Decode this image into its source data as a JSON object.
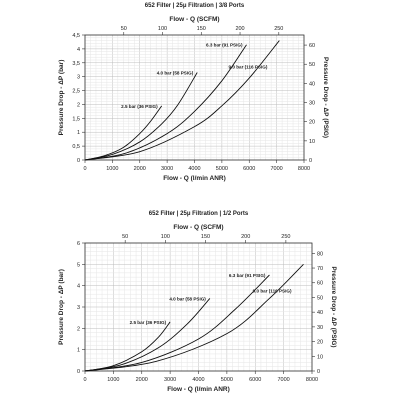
{
  "chart_data": [
    {
      "type": "line",
      "title": "652 Filter | 25μ Filtration | 3/8 Ports",
      "xlabel": "Flow - Q (l/min ANR)",
      "x2label": "Flow - Q (SCFM)",
      "ylabel": "Pressure Drop - ΔP (bar)",
      "y2label": "Pressure Drop - ΔP (PSIG)",
      "xlim": [
        0,
        8000
      ],
      "ylim": [
        0,
        4.5
      ],
      "x_ticks": [
        0,
        1000,
        2000,
        3000,
        4000,
        5000,
        6000,
        7000,
        8000
      ],
      "y_ticks": [
        0,
        0.5,
        1,
        1.5,
        2,
        2.5,
        3,
        3.5,
        4,
        4.5
      ],
      "y_tick_labels": [
        "0",
        "0,5",
        "1",
        "1,5",
        "2",
        "2,5",
        "3",
        "3,5",
        "4",
        "4,5"
      ],
      "x2_ticks": [
        50,
        100,
        150,
        200,
        250
      ],
      "y2_ticks": [
        0,
        10,
        20,
        30,
        40,
        50,
        60
      ],
      "grid": true,
      "series": [
        {
          "name": "2.5 bar (36 PSIG)",
          "x": [
            0,
            700,
            1400,
            2000,
            2400,
            2800
          ],
          "y": [
            0,
            0.15,
            0.45,
            0.95,
            1.4,
            1.95
          ]
        },
        {
          "name": "4.0 bar (58 PSIG)",
          "x": [
            0,
            1000,
            2000,
            2800,
            3400,
            4100
          ],
          "y": [
            0,
            0.2,
            0.65,
            1.3,
            2.0,
            3.15
          ]
        },
        {
          "name": "6.3 bar (91 PSIG)",
          "x": [
            0,
            1500,
            3000,
            4000,
            5000,
            5900
          ],
          "y": [
            0,
            0.25,
            0.95,
            1.75,
            2.85,
            4.15
          ]
        },
        {
          "name": "9.0 bar (116 PSIG)",
          "x": [
            0,
            2000,
            4000,
            5000,
            6000,
            7100
          ],
          "y": [
            0,
            0.3,
            1.2,
            1.95,
            2.95,
            4.3
          ]
        }
      ]
    },
    {
      "type": "line",
      "title": "652 Filter | 25μ Filtration | 1/2 Ports",
      "xlabel": "Flow - Q (l/min ANR)",
      "x2label": "Flow - Q (SCFM)",
      "ylabel": "Pressure Drop - ΔP (bar)",
      "y2label": "Pressure Drop - ΔP (PSIG)",
      "xlim": [
        0,
        8000
      ],
      "ylim": [
        0,
        6
      ],
      "x_ticks": [
        0,
        1000,
        2000,
        3000,
        4000,
        5000,
        6000,
        7000,
        8000
      ],
      "y_ticks": [
        0,
        1,
        2,
        3,
        4,
        5,
        6
      ],
      "y_tick_labels": [
        "0",
        "1",
        "2",
        "3",
        "4",
        "5",
        "6"
      ],
      "x2_ticks": [
        50,
        100,
        150,
        200,
        250
      ],
      "y2_ticks": [
        0,
        10,
        20,
        30,
        40,
        50,
        60,
        70,
        80
      ],
      "grid": true,
      "series": [
        {
          "name": "2.5 bar (36 PSIG)",
          "x": [
            0,
            1000,
            2000,
            2600,
            3000
          ],
          "y": [
            0,
            0.25,
            0.9,
            1.6,
            2.3
          ]
        },
        {
          "name": "4.0 bar (58 PSIG)",
          "x": [
            0,
            1300,
            2600,
            3600,
            4400
          ],
          "y": [
            0,
            0.3,
            1.1,
            2.2,
            3.4
          ]
        },
        {
          "name": "6.3 bar (91 PSIG)",
          "x": [
            0,
            2000,
            4000,
            5300,
            6500
          ],
          "y": [
            0,
            0.4,
            1.5,
            2.9,
            4.5
          ]
        },
        {
          "name": "9.0 bar (116 PSIG)",
          "x": [
            0,
            2500,
            5000,
            6500,
            7700
          ],
          "y": [
            0,
            0.45,
            1.75,
            3.4,
            5.0
          ]
        }
      ]
    }
  ]
}
